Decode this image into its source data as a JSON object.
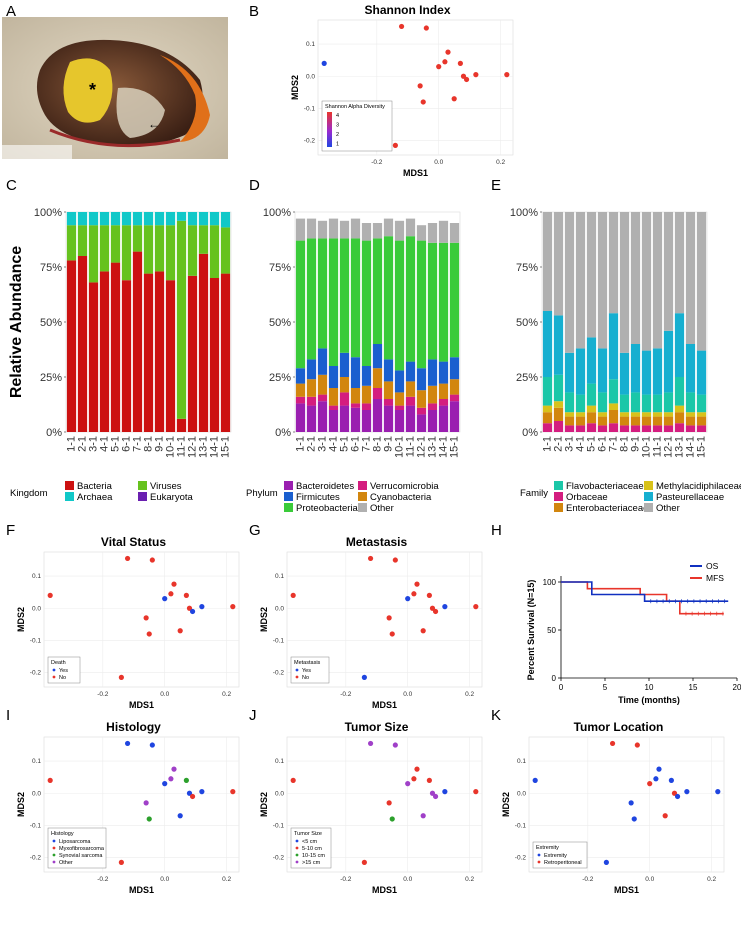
{
  "panel_letters": [
    "A",
    "B",
    "C",
    "D",
    "E",
    "F",
    "G",
    "H",
    "I",
    "J",
    "K"
  ],
  "photo": {
    "asterisk": "*",
    "arrow_glyph": "←"
  },
  "colors": {
    "red": "#e8352b",
    "blue": "#1f45e0",
    "green": "#2ca02c",
    "purple": "#a040c8"
  },
  "common": {
    "xlabel": "MDS1",
    "ylabel": "MDS2",
    "xticks": [
      "-0.2",
      "0.0",
      "0.2"
    ],
    "yticks": [
      "0.1",
      "0.0",
      "-0.1",
      "-0.2"
    ]
  },
  "points": [
    {
      "x": -0.37,
      "y": 0.04
    },
    {
      "x": -0.12,
      "y": 0.155
    },
    {
      "x": -0.04,
      "y": 0.15
    },
    {
      "x": 0.03,
      "y": 0.075
    },
    {
      "x": 0.02,
      "y": 0.045
    },
    {
      "x": 0.0,
      "y": 0.03
    },
    {
      "x": 0.07,
      "y": 0.04
    },
    {
      "x": 0.08,
      "y": 0.0
    },
    {
      "x": 0.09,
      "y": -0.01
    },
    {
      "x": 0.12,
      "y": 0.005
    },
    {
      "x": 0.22,
      "y": 0.005
    },
    {
      "x": -0.06,
      "y": -0.03
    },
    {
      "x": -0.05,
      "y": -0.08
    },
    {
      "x": 0.05,
      "y": -0.07
    },
    {
      "x": -0.14,
      "y": -0.215
    }
  ],
  "shannon": {
    "title": "Shannon Index",
    "legend_title": "Shannon Alpha Diversity",
    "legend_ticks": [
      "4",
      "3",
      "2",
      "1"
    ],
    "colors": [
      "blue",
      "red",
      "red",
      "red",
      "red",
      "red",
      "red",
      "red",
      "red",
      "red",
      "red",
      "red",
      "red",
      "red",
      "red"
    ]
  },
  "vital": {
    "title": "Vital Status",
    "legend_title": "Death",
    "legend_items": [
      {
        "label": "Yes",
        "color": "blue"
      },
      {
        "label": "No",
        "color": "red"
      }
    ],
    "colors": [
      "red",
      "red",
      "red",
      "red",
      "red",
      "blue",
      "red",
      "red",
      "blue",
      "blue",
      "red",
      "red",
      "red",
      "red",
      "red"
    ]
  },
  "metastasis": {
    "title": "Metastasis",
    "legend_title": "Metastasis",
    "legend_items": [
      {
        "label": "Yes",
        "color": "blue"
      },
      {
        "label": "No",
        "color": "red"
      }
    ],
    "colors": [
      "red",
      "red",
      "red",
      "red",
      "red",
      "blue",
      "red",
      "red",
      "red",
      "blue",
      "red",
      "red",
      "red",
      "red",
      "blue"
    ]
  },
  "histology": {
    "title": "Histology",
    "legend_title": "Histology",
    "legend_items": [
      {
        "label": "Liposarcoma",
        "color": "blue"
      },
      {
        "label": "Myxofibrosarcoma",
        "color": "red"
      },
      {
        "label": "Synovial sarcoma",
        "color": "green"
      },
      {
        "label": "Other",
        "color": "purple"
      }
    ],
    "colors": [
      "red",
      "blue",
      "blue",
      "purple",
      "purple",
      "blue",
      "green",
      "blue",
      "red",
      "blue",
      "red",
      "purple",
      "green",
      "blue",
      "red"
    ]
  },
  "tumor_size": {
    "title": "Tumor Size",
    "legend_title": "Tumor Size",
    "legend_items": [
      {
        "label": "<5 cm",
        "color": "blue"
      },
      {
        "label": "5-10 cm",
        "color": "red"
      },
      {
        "label": "10-15 cm",
        "color": "green"
      },
      {
        "label": ">15 cm",
        "color": "purple"
      }
    ],
    "colors": [
      "red",
      "purple",
      "purple",
      "red",
      "red",
      "purple",
      "red",
      "purple",
      "purple",
      "blue",
      "red",
      "red",
      "green",
      "purple",
      "red"
    ]
  },
  "location": {
    "title": "Tumor Location",
    "legend_title": "Extremity",
    "legend_items": [
      {
        "label": "Extremity",
        "color": "blue"
      },
      {
        "label": "Retroperitoneal",
        "color": "red"
      }
    ],
    "colors": [
      "blue",
      "red",
      "red",
      "blue",
      "blue",
      "red",
      "blue",
      "red",
      "blue",
      "blue",
      "blue",
      "blue",
      "blue",
      "red",
      "blue"
    ]
  },
  "abundance": {
    "ylabel": "Relative Abundance",
    "yticks": [
      "100%",
      "75%",
      "50%",
      "25%",
      "0%"
    ],
    "samples": [
      "1-1",
      "2-1",
      "3-1",
      "4-1",
      "5-1",
      "6-1",
      "7-1",
      "8-1",
      "9-1",
      "10-1",
      "11-1",
      "12-1",
      "13-1",
      "14-1",
      "15-1"
    ]
  },
  "chart_data": [
    {
      "type": "bar",
      "title": "Kingdom",
      "categories": [
        "1-1",
        "2-1",
        "3-1",
        "4-1",
        "5-1",
        "6-1",
        "7-1",
        "8-1",
        "9-1",
        "10-1",
        "11-1",
        "12-1",
        "13-1",
        "14-1",
        "15-1"
      ],
      "series": [
        {
          "name": "Bacteria",
          "color": "#cc1111",
          "values": [
            78,
            80,
            68,
            73,
            77,
            69,
            82,
            72,
            73,
            69,
            6,
            71,
            81,
            70,
            72
          ]
        },
        {
          "name": "Viruses",
          "color": "#66c21e",
          "values": [
            16,
            14,
            26,
            21,
            17,
            25,
            12,
            22,
            21,
            25,
            90,
            23,
            13,
            24,
            21
          ]
        },
        {
          "name": "Archaea",
          "color": "#10c8c8",
          "values": [
            6,
            6,
            6,
            6,
            6,
            6,
            6,
            6,
            6,
            6,
            4,
            6,
            6,
            6,
            7
          ]
        },
        {
          "name": "Eukaryota",
          "color": "#6a1fb0",
          "values": [
            0,
            0,
            0,
            0,
            0,
            0,
            0,
            0,
            0,
            0,
            0,
            0,
            0,
            0,
            0
          ]
        }
      ],
      "ylim": [
        0,
        100
      ],
      "ylabel": "Relative Abundance"
    },
    {
      "type": "bar",
      "title": "Phylum",
      "categories": [
        "1-1",
        "2-1",
        "3-1",
        "4-1",
        "5-1",
        "6-1",
        "7-1",
        "8-1",
        "9-1",
        "10-1",
        "11-1",
        "12-1",
        "13-1",
        "14-1",
        "15-1"
      ],
      "series": [
        {
          "name": "Bacteroidetes",
          "color": "#9a1fb0",
          "values": [
            13,
            12,
            14,
            10,
            12,
            11,
            10,
            15,
            12,
            10,
            12,
            8,
            10,
            12,
            14
          ]
        },
        {
          "name": "Cyanobacteria",
          "color": "#d2860e",
          "values": [
            6,
            8,
            9,
            8,
            7,
            7,
            8,
            9,
            8,
            6,
            7,
            8,
            8,
            7,
            7
          ]
        },
        {
          "name": "Firmicutes",
          "color": "#1a5fcf",
          "values": [
            7,
            9,
            12,
            10,
            11,
            14,
            9,
            11,
            10,
            10,
            9,
            10,
            12,
            10,
            10
          ]
        },
        {
          "name": "Other",
          "color": "#b0b0b0",
          "values": [
            10,
            9,
            8,
            9,
            8,
            9,
            8,
            7,
            8,
            9,
            8,
            7,
            9,
            10,
            9
          ]
        },
        {
          "name": "Proteobacteria",
          "color": "#3acb3a",
          "values": [
            58,
            55,
            50,
            58,
            52,
            54,
            57,
            48,
            56,
            59,
            57,
            58,
            53,
            54,
            52
          ]
        },
        {
          "name": "Verrucomicrobia",
          "color": "#d41d7f",
          "values": [
            3,
            4,
            3,
            2,
            6,
            2,
            3,
            5,
            3,
            2,
            4,
            3,
            3,
            3,
            3
          ]
        }
      ],
      "ylim": [
        0,
        100
      ]
    },
    {
      "type": "bar",
      "title": "Family",
      "categories": [
        "1-1",
        "2-1",
        "3-1",
        "4-1",
        "5-1",
        "6-1",
        "7-1",
        "8-1",
        "9-1",
        "10-1",
        "11-1",
        "12-1",
        "13-1",
        "14-1",
        "15-1"
      ],
      "series": [
        {
          "name": "Flavobacteriaceae",
          "color": "#1bc7a8",
          "values": [
            13,
            12,
            9,
            8,
            10,
            9,
            11,
            8,
            9,
            8,
            8,
            9,
            13,
            9,
            8
          ]
        },
        {
          "name": "Orbaceae",
          "color": "#d41d7f",
          "values": [
            4,
            5,
            3,
            3,
            4,
            3,
            4,
            3,
            3,
            3,
            3,
            3,
            4,
            3,
            3
          ]
        },
        {
          "name": "Enterobacteriaceae",
          "color": "#d2860e",
          "values": [
            5,
            6,
            4,
            4,
            5,
            4,
            6,
            4,
            4,
            4,
            4,
            4,
            5,
            4,
            4
          ]
        },
        {
          "name": "Methylacidiphilaceae",
          "color": "#d8c21a",
          "values": [
            3,
            3,
            2,
            2,
            3,
            2,
            3,
            2,
            2,
            2,
            2,
            2,
            3,
            2,
            2
          ]
        },
        {
          "name": "Pasteurellaceae",
          "color": "#16afd0",
          "values": [
            30,
            27,
            18,
            21,
            21,
            20,
            30,
            19,
            22,
            20,
            21,
            28,
            29,
            22,
            20
          ]
        },
        {
          "name": "Other",
          "color": "#b0b0b0",
          "values": [
            45,
            47,
            64,
            62,
            57,
            62,
            46,
            64,
            60,
            63,
            62,
            54,
            46,
            60,
            63
          ]
        }
      ],
      "ylim": [
        0,
        100
      ]
    },
    {
      "type": "line",
      "title": "Percent Survival (N=15)",
      "xlabel": "Time (months)",
      "ylabel": "Percent Survival (N=15)",
      "xlim": [
        0,
        20
      ],
      "ylim": [
        0,
        100
      ],
      "xticks": [
        "0",
        "5",
        "10",
        "15",
        "20"
      ],
      "yticks": [
        "100",
        "50",
        "0"
      ],
      "series": [
        {
          "name": "OS",
          "color": "#1030c0",
          "x": [
            0,
            3.5,
            3.5,
            9.5,
            9.5,
            19
          ],
          "y": [
            100,
            100,
            87,
            87,
            80,
            80
          ]
        },
        {
          "name": "MFS",
          "color": "#e8352b",
          "x": [
            0,
            3,
            3,
            9,
            9,
            12,
            12,
            13.5,
            13.5,
            18.5
          ],
          "y": [
            100,
            100,
            93,
            93,
            87,
            87,
            80,
            80,
            67,
            67
          ]
        }
      ]
    }
  ],
  "legends": {
    "kingdom": {
      "title": "Kingdom",
      "items": [
        "Bacteria",
        "Viruses",
        "Archaea",
        "Eukaryota"
      ]
    },
    "phylum": {
      "title": "Phylum",
      "items": [
        "Bacteroidetes",
        "Verrucomicrobia",
        "Firmicutes",
        "Cyanobacteria",
        "Proteobacteria",
        "Other"
      ]
    },
    "family": {
      "title": "Family",
      "items": [
        "Flavobacteriaceae",
        "Methylacidiphilaceae",
        "Orbaceae",
        "Pasteurellaceae",
        "Enterobacteriaceae",
        "Other"
      ]
    }
  }
}
